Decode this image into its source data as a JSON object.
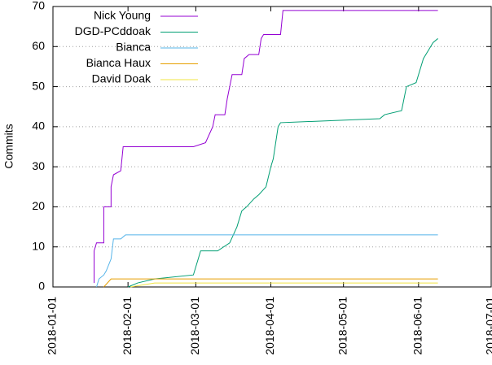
{
  "chart_data": {
    "type": "line",
    "y_label": "Commits",
    "xlim": [
      "2018-01-01",
      "2018-07-01"
    ],
    "xticks": [
      "2018-01-01",
      "2018-02-01",
      "2018-03-01",
      "2018-04-01",
      "2018-05-01",
      "2018-06-01",
      "2018-07-01"
    ],
    "ylim": [
      0,
      70
    ],
    "yticks": [
      0,
      10,
      20,
      30,
      40,
      50,
      60,
      70
    ],
    "grid": true,
    "legend": "top-left",
    "series": [
      {
        "name": "Nick Young",
        "color": "#9400d3",
        "x": [
          "2018-01-18",
          "2018-01-18",
          "2018-01-19",
          "2018-01-22",
          "2018-01-22",
          "2018-01-25",
          "2018-01-25",
          "2018-01-26",
          "2018-01-29",
          "2018-01-30",
          "2018-02-28",
          "2018-03-05",
          "2018-03-08",
          "2018-03-09",
          "2018-03-13",
          "2018-03-14",
          "2018-03-15",
          "2018-03-16",
          "2018-03-20",
          "2018-03-21",
          "2018-03-23",
          "2018-03-27",
          "2018-03-28",
          "2018-03-29",
          "2018-04-05",
          "2018-04-06",
          "2018-06-09"
        ],
        "values": [
          1,
          9,
          11,
          11,
          20,
          20,
          25,
          28,
          29,
          35,
          35,
          36,
          40,
          43,
          43,
          47,
          50,
          53,
          53,
          57,
          58,
          58,
          62,
          63,
          63,
          69,
          69
        ]
      },
      {
        "name": "DGD-PCddoak",
        "color": "#009e73",
        "x": [
          "2018-02-01",
          "2018-02-05",
          "2018-02-12",
          "2018-02-28",
          "2018-03-02",
          "2018-03-03",
          "2018-03-10",
          "2018-03-15",
          "2018-03-18",
          "2018-03-20",
          "2018-03-22",
          "2018-03-25",
          "2018-03-27",
          "2018-03-30",
          "2018-04-01",
          "2018-04-02",
          "2018-04-04",
          "2018-04-05",
          "2018-05-16",
          "2018-05-18",
          "2018-05-25",
          "2018-05-27",
          "2018-05-31",
          "2018-06-03",
          "2018-06-05",
          "2018-06-07",
          "2018-06-09"
        ],
        "values": [
          0,
          1,
          2,
          3,
          7,
          9,
          9,
          11,
          15,
          19,
          20,
          22,
          23,
          25,
          30,
          32,
          40,
          41,
          42,
          43,
          44,
          50,
          51,
          57,
          59,
          61,
          62
        ]
      },
      {
        "name": "Bianca",
        "color": "#56b4e9",
        "x": [
          "2018-01-19",
          "2018-01-20",
          "2018-01-22",
          "2018-01-23",
          "2018-01-25",
          "2018-01-26",
          "2018-01-29",
          "2018-01-31",
          "2018-06-09"
        ],
        "values": [
          0,
          2,
          3,
          4,
          7,
          12,
          12,
          13,
          13
        ]
      },
      {
        "name": "Bianca Haux",
        "color": "#e69f00",
        "x": [
          "2018-01-22",
          "2018-01-25",
          "2018-06-09"
        ],
        "values": [
          0,
          2,
          2
        ]
      },
      {
        "name": "David Doak",
        "color": "#f0e442",
        "x": [
          "2018-02-02",
          "2018-02-12",
          "2018-06-09"
        ],
        "values": [
          0,
          1,
          1
        ]
      }
    ]
  }
}
